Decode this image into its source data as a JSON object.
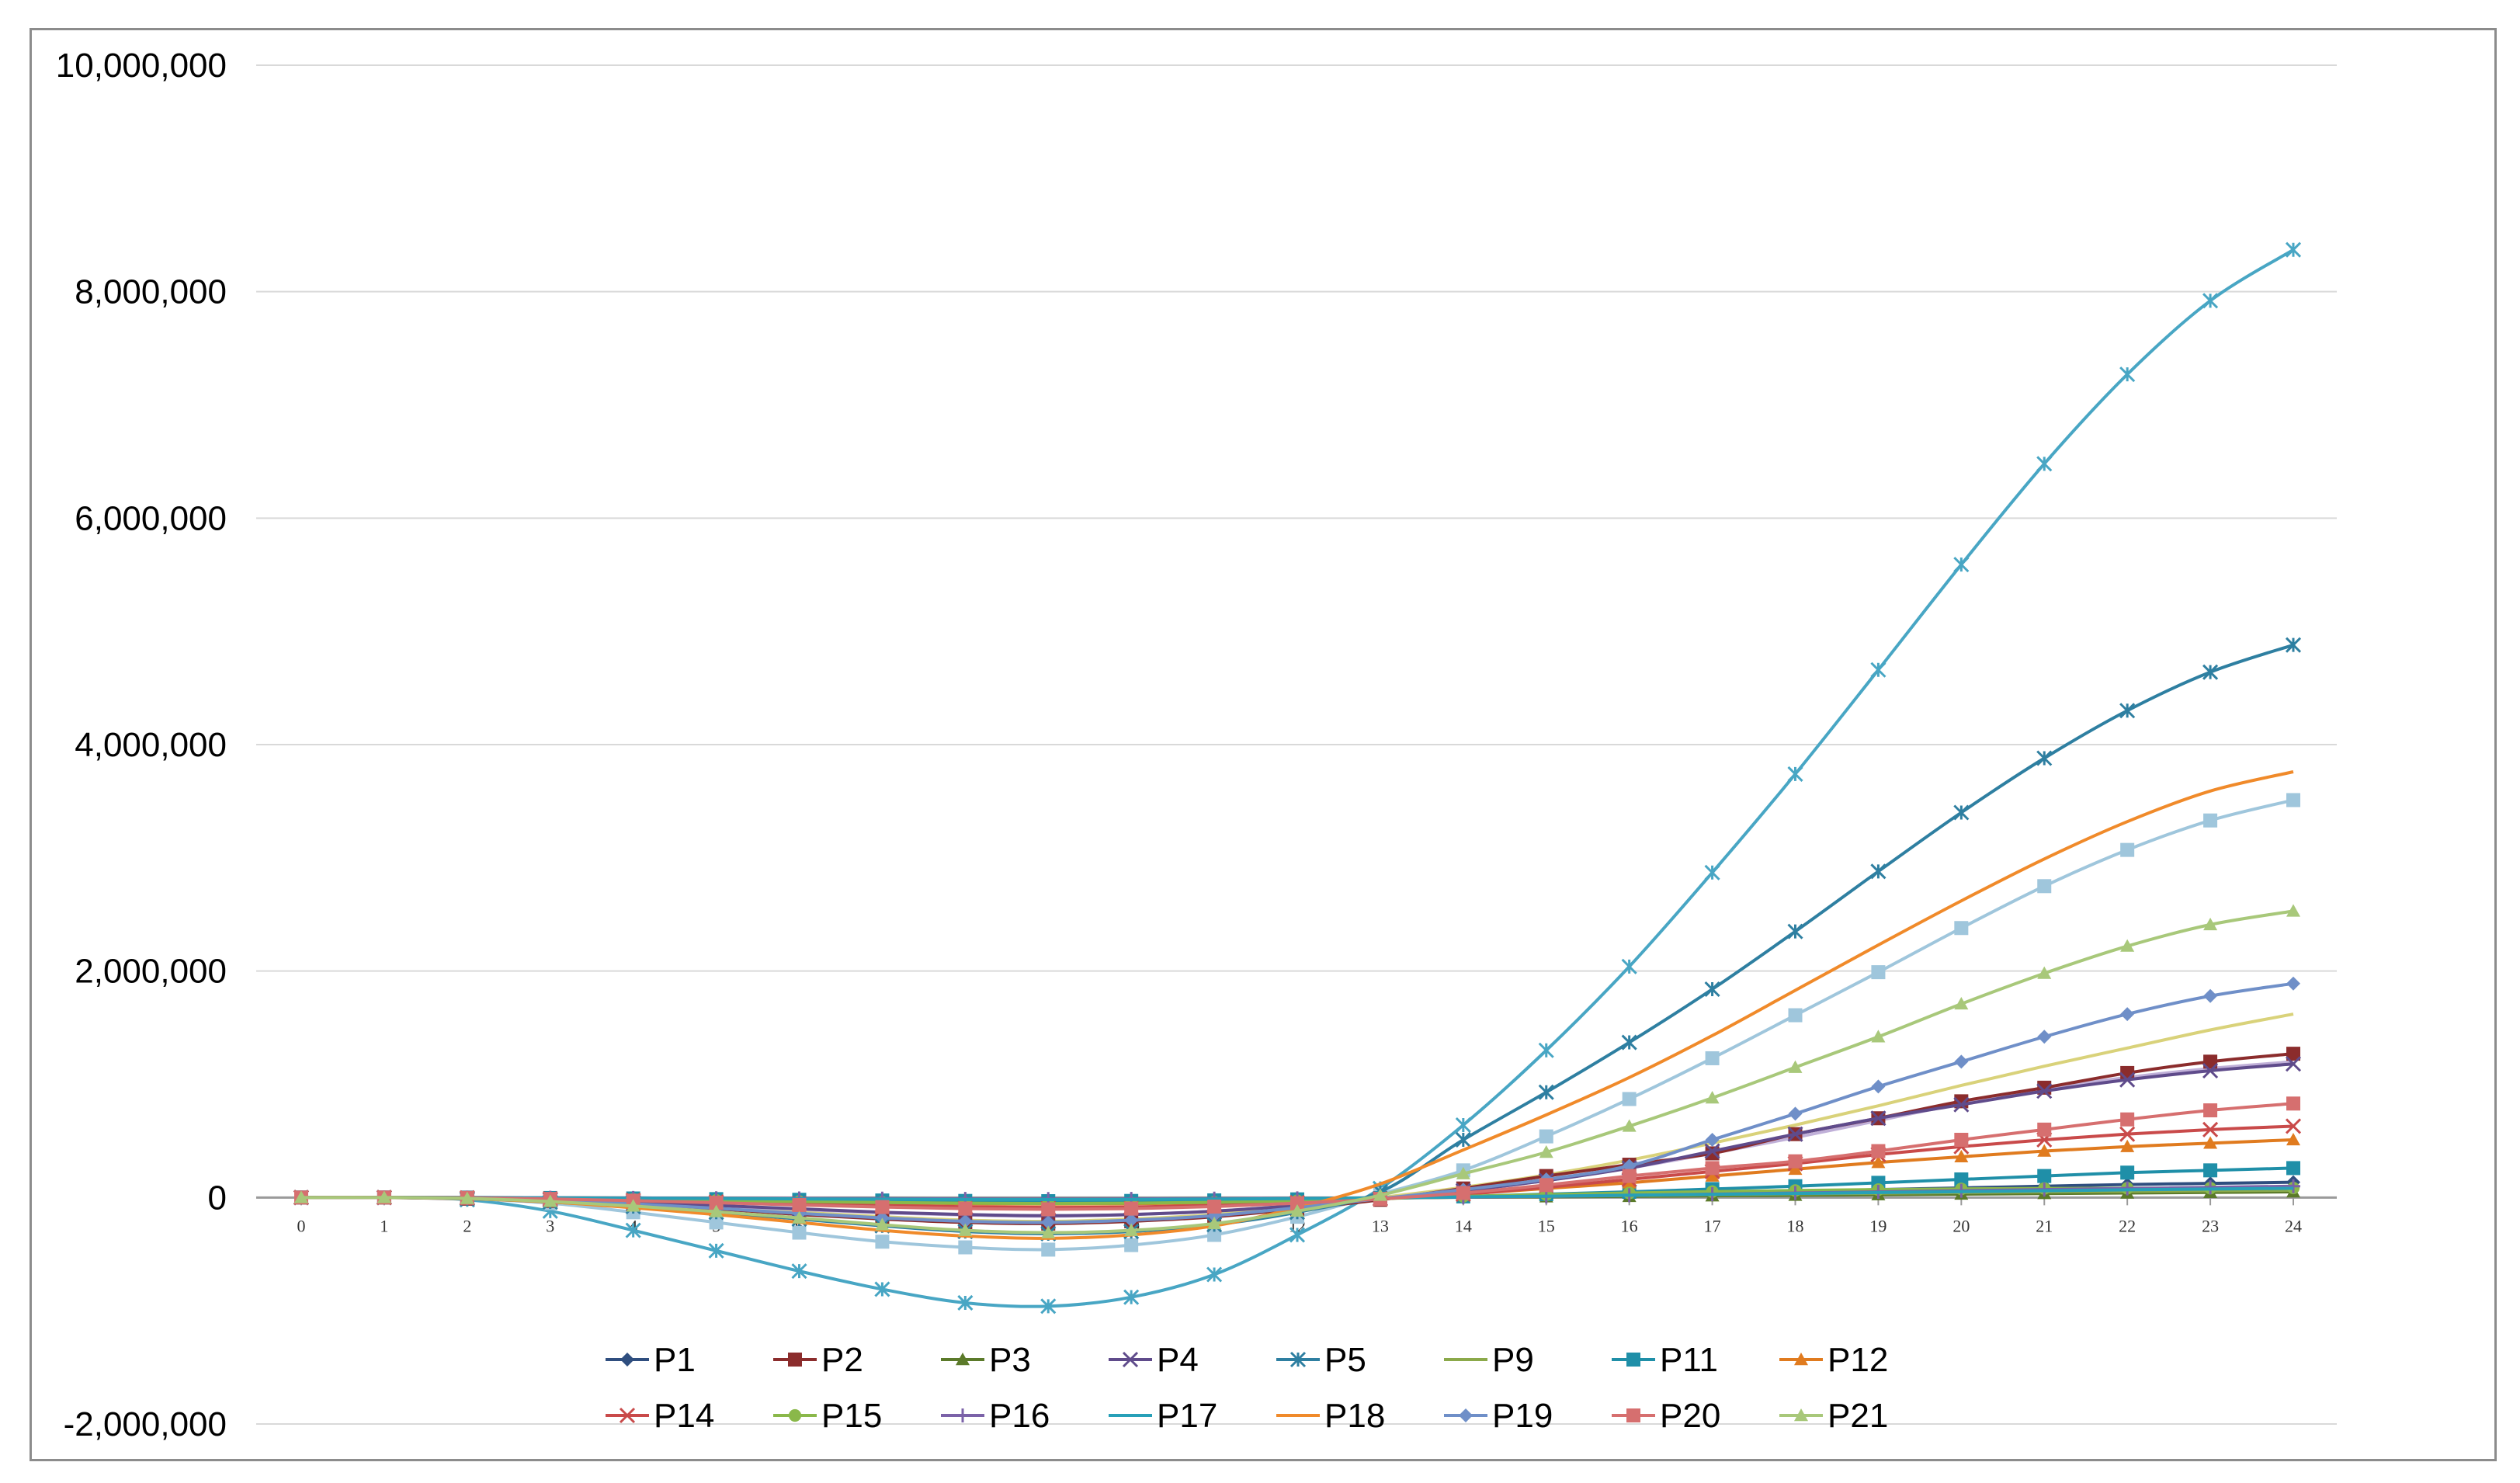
{
  "chart_data": {
    "type": "line",
    "title": "",
    "xlabel": "",
    "ylabel": "",
    "x": [
      0,
      1,
      2,
      3,
      4,
      5,
      6,
      7,
      8,
      9,
      10,
      11,
      12,
      13,
      14,
      15,
      16,
      17,
      18,
      19,
      20,
      21,
      22,
      23,
      24
    ],
    "ylim": [
      -2000000,
      10000000
    ],
    "y_ticks": [
      10000000,
      8000000,
      6000000,
      4000000,
      2000000,
      0,
      -2000000
    ],
    "y_tick_labels": [
      "10,000,000",
      "8,000,000",
      "6,000,000",
      "4,000,000",
      "2,000,000",
      "0",
      "-2,000,000"
    ],
    "x_tick_labels": [
      "0",
      "1",
      "2",
      "3",
      "4",
      "5",
      "6",
      "7",
      "8",
      "9",
      "10",
      "11",
      "12",
      "13",
      "14",
      "15",
      "16",
      "17",
      "18",
      "19",
      "20",
      "21",
      "22",
      "23",
      "24"
    ],
    "grid": true,
    "legend_position": "bottom",
    "series": [
      {
        "name": "P1",
        "color": "#2f4e7f",
        "marker": "diamond",
        "values": [
          0,
          0,
          0,
          -3000,
          -6000,
          -10000,
          -15000,
          -20000,
          -24000,
          -26000,
          -25000,
          -22000,
          -15000,
          -5000,
          5000,
          15000,
          25000,
          40000,
          55000,
          70000,
          85000,
          100000,
          115000,
          125000,
          135000
        ]
      },
      {
        "name": "P2",
        "color": "#8b2c2c",
        "marker": "square",
        "values": [
          0,
          0,
          -10000,
          -30000,
          -60000,
          -100000,
          -150000,
          -190000,
          -220000,
          -230000,
          -210000,
          -170000,
          -100000,
          -20000,
          80000,
          190000,
          290000,
          390000,
          560000,
          700000,
          850000,
          970000,
          1100000,
          1200000,
          1270000
        ]
      },
      {
        "name": "P3",
        "color": "#5b7a2a",
        "marker": "triangle",
        "values": [
          0,
          0,
          0,
          -2000,
          -4000,
          -6000,
          -8000,
          -10000,
          -12000,
          -13000,
          -12000,
          -10000,
          -7000,
          -3000,
          2000,
          6000,
          10000,
          15000,
          20000,
          25000,
          30000,
          35000,
          40000,
          45000,
          50000
        ]
      },
      {
        "name": "P4",
        "color": "#5f4b8b",
        "marker": "x",
        "values": [
          0,
          0,
          -5000,
          -20000,
          -40000,
          -70000,
          -100000,
          -130000,
          -150000,
          -160000,
          -150000,
          -120000,
          -70000,
          -10000,
          60000,
          150000,
          260000,
          410000,
          560000,
          700000,
          820000,
          940000,
          1040000,
          1120000,
          1180000
        ]
      },
      {
        "name": "P5",
        "color": "#2e7fa1",
        "marker": "star",
        "values": [
          0,
          0,
          -10000,
          -40000,
          -80000,
          -130000,
          -190000,
          -250000,
          -300000,
          -320000,
          -300000,
          -240000,
          -130000,
          50000,
          510000,
          930000,
          1370000,
          1840000,
          2350000,
          2880000,
          3400000,
          3880000,
          4300000,
          4640000,
          4880000
        ]
      },
      {
        "name": "P9",
        "color": "#8ba94a",
        "marker": "none",
        "values": [
          0,
          0,
          0,
          -3000,
          -6000,
          -10000,
          -14000,
          -18000,
          -22000,
          -24000,
          -23000,
          -20000,
          -14000,
          -6000,
          3000,
          10000,
          18000,
          25000,
          32000,
          38000,
          44000,
          50000,
          55000,
          60000,
          65000
        ]
      },
      {
        "name": "P11",
        "color": "#1f8fa8",
        "marker": "square",
        "values": [
          0,
          0,
          0,
          -4000,
          -8000,
          -14000,
          -20000,
          -26000,
          -30000,
          -32000,
          -30000,
          -25000,
          -16000,
          -5000,
          10000,
          30000,
          50000,
          75000,
          100000,
          130000,
          160000,
          190000,
          220000,
          240000,
          260000
        ]
      },
      {
        "name": "P12",
        "color": "#e07b1f",
        "marker": "triangle",
        "values": [
          0,
          0,
          -2000,
          -8000,
          -16000,
          -26000,
          -36000,
          -46000,
          -54000,
          -58000,
          -55000,
          -46000,
          -30000,
          -10000,
          30000,
          80000,
          130000,
          190000,
          250000,
          310000,
          360000,
          410000,
          450000,
          480000,
          510000
        ]
      },
      {
        "name": "P14",
        "color": "#c94a4a",
        "marker": "x",
        "values": [
          0,
          0,
          -3000,
          -12000,
          -25000,
          -40000,
          -55000,
          -70000,
          -82000,
          -88000,
          -84000,
          -70000,
          -45000,
          -12000,
          30000,
          90000,
          160000,
          230000,
          300000,
          380000,
          450000,
          510000,
          560000,
          600000,
          630000
        ]
      },
      {
        "name": "P15",
        "color": "#8ab84a",
        "marker": "circle",
        "values": [
          0,
          0,
          -2000,
          -8000,
          -16000,
          -25000,
          -35000,
          -44000,
          -50000,
          -53000,
          -50000,
          -42000,
          -28000,
          -10000,
          10000,
          25000,
          40000,
          52000,
          62000,
          70000,
          76000,
          80000,
          82000,
          83000,
          84000
        ]
      },
      {
        "name": "P16",
        "color": "#7b62a8",
        "marker": "plus",
        "values": [
          0,
          0,
          0,
          -2000,
          -4000,
          -6000,
          -8000,
          -10000,
          -12000,
          -13000,
          -12000,
          -10000,
          -7000,
          -3000,
          3000,
          10000,
          20000,
          30000,
          40000,
          50000,
          60000,
          70000,
          80000,
          90000,
          100000
        ]
      },
      {
        "name": "P17",
        "color": "#27a0b8",
        "marker": "none",
        "values": [
          0,
          0,
          -1000,
          -3000,
          -6000,
          -9000,
          -12000,
          -15000,
          -17000,
          -18000,
          -17000,
          -14000,
          -9000,
          -3000,
          5000,
          12000,
          20000,
          28000,
          36000,
          44000,
          52000,
          60000,
          68000,
          75000,
          82000
        ]
      },
      {
        "name": "P18",
        "color": "#f08a2a",
        "marker": "none",
        "values": [
          0,
          0,
          -10000,
          -40000,
          -90000,
          -150000,
          -220000,
          -290000,
          -340000,
          -360000,
          -330000,
          -250000,
          -90000,
          120000,
          420000,
          730000,
          1060000,
          1430000,
          1830000,
          2230000,
          2620000,
          2990000,
          3320000,
          3590000,
          3760000
        ]
      },
      {
        "name": "P19",
        "color": "#6f8fc8",
        "marker": "diamond",
        "values": [
          0,
          0,
          -5000,
          -25000,
          -55000,
          -95000,
          -140000,
          -180000,
          -210000,
          -220000,
          -200000,
          -160000,
          -90000,
          -10000,
          70000,
          160000,
          280000,
          510000,
          740000,
          980000,
          1200000,
          1420000,
          1620000,
          1780000,
          1890000
        ]
      },
      {
        "name": "P20",
        "color": "#d66f6f",
        "marker": "square",
        "values": [
          0,
          0,
          -3000,
          -12000,
          -28000,
          -46000,
          -66000,
          -84000,
          -98000,
          -104000,
          -98000,
          -80000,
          -50000,
          -12000,
          40000,
          110000,
          190000,
          260000,
          320000,
          410000,
          510000,
          600000,
          690000,
          770000,
          830000
        ]
      },
      {
        "name": "P21",
        "color": "#a8c87a",
        "marker": "triangle",
        "values": [
          0,
          0,
          -8000,
          -35000,
          -75000,
          -125000,
          -180000,
          -240000,
          -290000,
          -310000,
          -290000,
          -230000,
          -120000,
          20000,
          210000,
          400000,
          630000,
          880000,
          1150000,
          1420000,
          1710000,
          1980000,
          2220000,
          2410000,
          2530000
        ]
      }
    ],
    "extra_series": [
      {
        "color": "#48a6c4",
        "marker": "star",
        "values": [
          0,
          0,
          -20000,
          -120000,
          -290000,
          -470000,
          -650000,
          -810000,
          -930000,
          -960000,
          -880000,
          -680000,
          -330000,
          80000,
          640000,
          1300000,
          2040000,
          2870000,
          3740000,
          4660000,
          5590000,
          6480000,
          7270000,
          7920000,
          8370000
        ]
      },
      {
        "color": "#9fc6dc",
        "marker": "square",
        "values": [
          0,
          0,
          -10000,
          -50000,
          -130000,
          -220000,
          -310000,
          -390000,
          -440000,
          -460000,
          -420000,
          -330000,
          -170000,
          30000,
          240000,
          540000,
          870000,
          1230000,
          1610000,
          1990000,
          2380000,
          2750000,
          3070000,
          3330000,
          3510000
        ]
      },
      {
        "color": "#d9d27a",
        "marker": "none",
        "values": [
          0,
          0,
          -5000,
          -25000,
          -55000,
          -90000,
          -130000,
          -170000,
          -200000,
          -210000,
          -190000,
          -150000,
          -80000,
          0,
          90000,
          200000,
          330000,
          480000,
          640000,
          810000,
          990000,
          1160000,
          1320000,
          1480000,
          1620000
        ]
      },
      {
        "color": "#c0b0d8",
        "marker": "none",
        "values": [
          0,
          0,
          -5000,
          -20000,
          -45000,
          -75000,
          -105000,
          -135000,
          -155000,
          -165000,
          -150000,
          -120000,
          -70000,
          -10000,
          60000,
          150000,
          260000,
          390000,
          530000,
          680000,
          830000,
          960000,
          1060000,
          1140000,
          1200000
        ]
      }
    ]
  }
}
